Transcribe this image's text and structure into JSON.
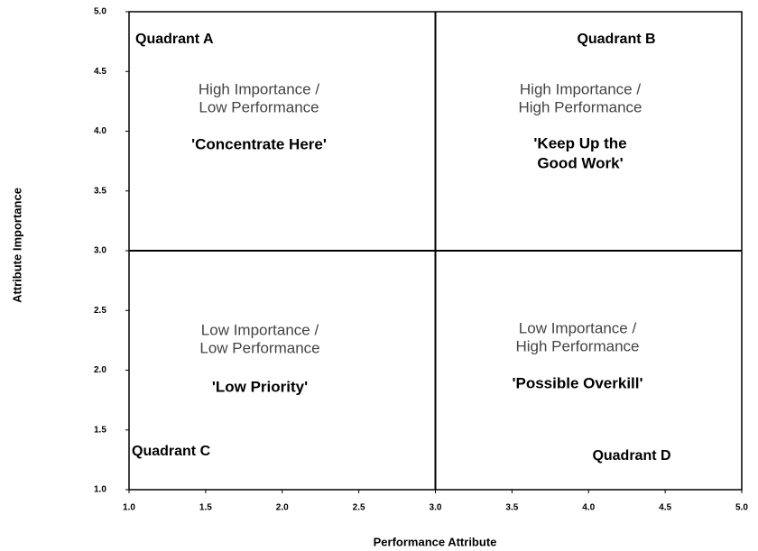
{
  "chart_data": {
    "type": "quadrant",
    "x_label": "Performance Attribute",
    "y_label": "Attribute Importance",
    "xlim": [
      1,
      5
    ],
    "ylim": [
      1,
      5
    ],
    "xticks": [
      {
        "value": 1,
        "label": "1.0"
      },
      {
        "value": 1.5,
        "label": "1.5"
      },
      {
        "value": 2,
        "label": "2.0"
      },
      {
        "value": 2.5,
        "label": "2.5"
      },
      {
        "value": 3,
        "label": "3.0"
      },
      {
        "value": 3.5,
        "label": "3.5"
      },
      {
        "value": 4,
        "label": "4.0"
      },
      {
        "value": 4.5,
        "label": "4.5"
      },
      {
        "value": 5,
        "label": "5.0"
      }
    ],
    "yticks": [
      {
        "value": 1,
        "label": "1.0"
      },
      {
        "value": 1.5,
        "label": "1.5"
      },
      {
        "value": 2,
        "label": "2.0"
      },
      {
        "value": 2.5,
        "label": "2.5"
      },
      {
        "value": 3,
        "label": "3.0"
      },
      {
        "value": 3.5,
        "label": "3.5"
      },
      {
        "value": 4,
        "label": "4.0"
      },
      {
        "value": 4.5,
        "label": "4.5"
      },
      {
        "value": 5,
        "label": "5.0"
      }
    ],
    "x_split": 3,
    "y_split": 3,
    "quadrants": [
      {
        "name": "Quadrant A",
        "description": [
          "High Importance /",
          "Low Performance"
        ],
        "motto": [
          "'Concentrate Here'"
        ]
      },
      {
        "name": "Quadrant B",
        "description": [
          "High Importance /",
          "High Performance"
        ],
        "motto": [
          "'Keep Up the",
          "Good Work'"
        ]
      },
      {
        "name": "Quadrant C",
        "description": [
          "Low Importance /",
          "Low Performance"
        ],
        "motto": [
          "'Low Priority'"
        ]
      },
      {
        "name": "Quadrant D",
        "description": [
          "Low Importance /",
          "High Performance"
        ],
        "motto": [
          "'Possible Overkill'"
        ]
      }
    ]
  }
}
